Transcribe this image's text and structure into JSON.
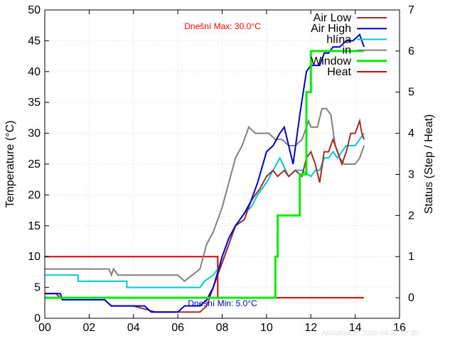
{
  "chart_data": {
    "type": "line",
    "title": "",
    "xlabel": "",
    "ylabel": "Temperature (°C)",
    "y2label": "Status (Step / Heat)",
    "xlim": [
      0,
      16
    ],
    "ylim": [
      0,
      50
    ],
    "y2lim": [
      -0.5,
      7
    ],
    "x_ticks": [
      "00",
      "02",
      "04",
      "06",
      "08",
      "10",
      "12",
      "14",
      "16"
    ],
    "y_ticks": [
      "0",
      "5",
      "10",
      "15",
      "20",
      "25",
      "30",
      "35",
      "40",
      "45",
      "50"
    ],
    "y2_ticks": [
      "0",
      "1",
      "2",
      "3",
      "4",
      "5",
      "6",
      "7"
    ],
    "grid": true,
    "legend_position": "top-right",
    "annotations": {
      "max_text": "Dnešní Max: 30.0°C",
      "min_text": "Dnešní Min: 5.0°C",
      "updated_text": "Aktualizace: 2026-04-22 12:30"
    },
    "colors": {
      "air_low": "#a52a2a",
      "air_high": "#0000cc",
      "hlina": "#00c8d0",
      "in": "#808080",
      "window": "#00ee00",
      "heat": "#dd0000",
      "max_text": "#ff0000",
      "min_text": "#0000cc"
    },
    "series": [
      {
        "name": "Air Low",
        "axis": "y",
        "x": [
          0,
          0.5,
          0.8,
          1.5,
          2.7,
          3.0,
          4.0,
          5.0,
          6.0,
          7.0,
          7.3,
          7.6,
          8.0,
          8.3,
          8.6,
          9.0,
          9.3,
          9.7,
          10.0,
          10.3,
          10.5,
          10.8,
          11.0,
          11.3,
          11.6,
          11.8,
          12.0,
          12.2,
          12.4,
          12.6,
          12.8,
          13.0,
          13.2,
          13.4,
          13.6,
          13.8,
          14.0,
          14.2,
          14.3,
          14.4
        ],
        "y": [
          4,
          4,
          3,
          3,
          3,
          2,
          2,
          1,
          1,
          1,
          2,
          5,
          9,
          12,
          15,
          16,
          19,
          21,
          23,
          24,
          23,
          24,
          23,
          24,
          23,
          26,
          27,
          25,
          22,
          27,
          27,
          29,
          27,
          25,
          27,
          30,
          30,
          32,
          30,
          29
        ]
      },
      {
        "name": "Air High",
        "axis": "y",
        "x": [
          0,
          0.7,
          0.8,
          2.7,
          3.0,
          4.5,
          4.8,
          6.0,
          6.3,
          7.0,
          7.3,
          7.6,
          8.0,
          8.3,
          8.6,
          9.0,
          9.3,
          9.6,
          10.0,
          10.3,
          10.6,
          10.8,
          11.0,
          11.2,
          11.5,
          11.8,
          12.0,
          12.2,
          12.4,
          12.6,
          12.8,
          13.0,
          13.3,
          13.6,
          13.9,
          14.2,
          14.4
        ],
        "y": [
          4,
          4,
          3,
          3,
          2,
          2,
          1,
          1,
          2,
          2,
          3,
          5,
          10,
          13,
          15,
          17,
          19,
          22,
          27,
          28,
          30,
          31,
          28,
          25,
          33,
          40,
          41,
          41,
          41,
          43,
          43,
          44,
          44,
          45,
          45,
          46,
          44
        ]
      },
      {
        "name": "hlína",
        "axis": "y",
        "x": [
          0,
          1.5,
          1.5,
          3.7,
          3.7,
          7.0,
          7.2,
          7.6,
          8.0,
          8.3,
          8.6,
          9.0,
          9.3,
          9.6,
          10.0,
          10.3,
          10.6,
          11.0,
          11.3,
          11.6,
          12.0,
          12.2,
          12.4,
          12.6,
          12.8,
          13.0,
          13.2,
          13.4,
          13.6,
          13.8,
          14.0,
          14.2,
          14.4
        ],
        "y": [
          7,
          7,
          6,
          6,
          5,
          5,
          6,
          7,
          9,
          12,
          15,
          17,
          18,
          20,
          22,
          24,
          26,
          23,
          24,
          24,
          23,
          24,
          24,
          26,
          26,
          27,
          26,
          27,
          28,
          28,
          28,
          29,
          30
        ]
      },
      {
        "name": "in",
        "axis": "y",
        "x": [
          0,
          2.9,
          3.0,
          3.1,
          3.3,
          6.0,
          6.3,
          7.0,
          7.3,
          7.6,
          8.0,
          8.3,
          8.6,
          8.9,
          9.2,
          9.5,
          9.8,
          10.1,
          10.4,
          10.7,
          11.0,
          11.3,
          11.6,
          11.9,
          12.0,
          12.3,
          12.5,
          12.7,
          12.9,
          13.1,
          13.3,
          13.5,
          13.7,
          14.0,
          14.2,
          14.4
        ],
        "y": [
          8,
          8,
          7,
          8,
          7,
          7,
          6,
          8,
          12,
          14,
          18,
          22,
          26,
          28,
          31,
          30,
          30,
          30,
          29,
          29,
          28,
          28,
          29,
          32,
          31,
          31,
          34,
          34,
          33,
          28,
          26,
          25,
          25,
          25,
          26,
          28
        ]
      },
      {
        "name": "Window",
        "axis": "y2",
        "x": [
          0,
          10.4,
          10.4,
          10.5,
          10.5,
          11.5,
          11.5,
          11.8,
          11.8,
          12.0,
          12.0,
          14.4
        ],
        "y": [
          0,
          0,
          1,
          1,
          2,
          2,
          3,
          3,
          5,
          5,
          6,
          6
        ]
      },
      {
        "name": "Heat",
        "axis": "y2",
        "x": [
          0,
          7.8,
          7.8,
          14.4
        ],
        "y": [
          1,
          1,
          0,
          0
        ]
      }
    ]
  }
}
